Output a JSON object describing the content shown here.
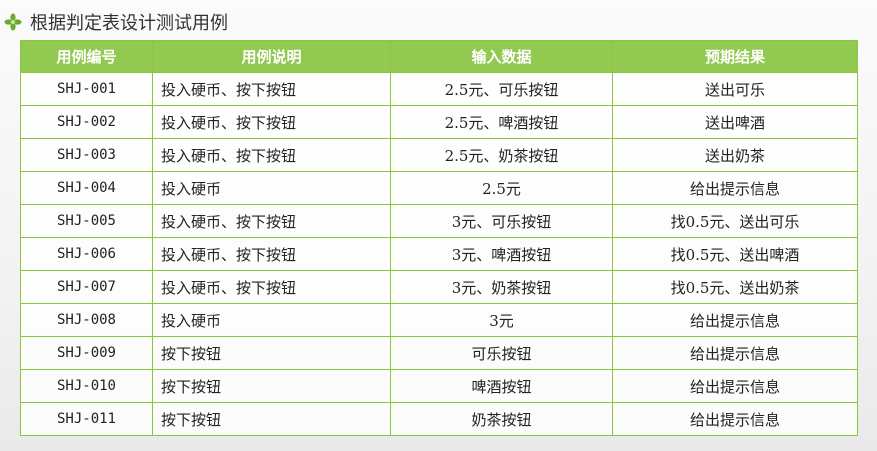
{
  "header": {
    "title": "根据判定表设计测试用例"
  },
  "table": {
    "columns": [
      "用例编号",
      "用例说明",
      "输入数据",
      "预期结果"
    ],
    "rows": [
      [
        "SHJ-001",
        "投入硬币、按下按钮",
        "2.5元、可乐按钮",
        "送出可乐"
      ],
      [
        "SHJ-002",
        "投入硬币、按下按钮",
        "2.5元、啤酒按钮",
        "送出啤酒"
      ],
      [
        "SHJ-003",
        "投入硬币、按下按钮",
        "2.5元、奶茶按钮",
        "送出奶茶"
      ],
      [
        "SHJ-004",
        "投入硬币",
        "2.5元",
        "给出提示信息"
      ],
      [
        "SHJ-005",
        "投入硬币、按下按钮",
        "3元、可乐按钮",
        "找0.5元、送出可乐"
      ],
      [
        "SHJ-006",
        "投入硬币、按下按钮",
        "3元、啤酒按钮",
        "找0.5元、送出啤酒"
      ],
      [
        "SHJ-007",
        "投入硬币、按下按钮",
        "3元、奶茶按钮",
        "找0.5元、送出奶茶"
      ],
      [
        "SHJ-008",
        "投入硬币",
        "3元",
        "给出提示信息"
      ],
      [
        "SHJ-009",
        "按下按钮",
        "可乐按钮",
        "给出提示信息"
      ],
      [
        "SHJ-010",
        "按下按钮",
        "啤酒按钮",
        "给出提示信息"
      ],
      [
        "SHJ-011",
        "按下按钮",
        "奶茶按钮",
        "给出提示信息"
      ]
    ]
  }
}
